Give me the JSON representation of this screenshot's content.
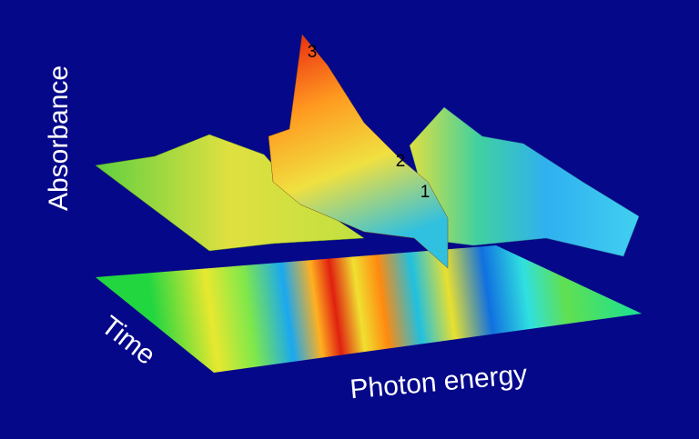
{
  "axes": {
    "z": "Absorbance",
    "y": "Time",
    "x": "Photon energy"
  },
  "peak_labels": [
    "3",
    "2",
    "1"
  ]
}
